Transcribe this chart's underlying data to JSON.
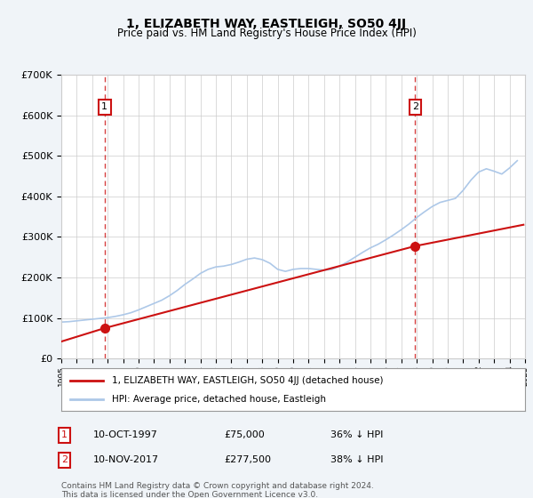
{
  "title": "1, ELIZABETH WAY, EASTLEIGH, SO50 4JJ",
  "subtitle": "Price paid vs. HM Land Registry's House Price Index (HPI)",
  "hpi_label": "HPI: Average price, detached house, Eastleigh",
  "property_label": "1, ELIZABETH WAY, EASTLEIGH, SO50 4JJ (detached house)",
  "sale1_date": "10-OCT-1997",
  "sale1_price": 75000,
  "sale1_hpi": "36% ↓ HPI",
  "sale2_date": "10-NOV-2017",
  "sale2_price": 277500,
  "sale2_hpi": "38% ↓ HPI",
  "ylim": [
    0,
    700000
  ],
  "ylabel_ticks": [
    0,
    100000,
    200000,
    300000,
    400000,
    500000,
    600000,
    700000
  ],
  "background_color": "#f0f4f8",
  "plot_bg_color": "#ffffff",
  "hpi_color": "#adc8e8",
  "property_color": "#cc1111",
  "dashed_color": "#cc1111",
  "annotation_box_color": "#cc1111",
  "footer_text": "Contains HM Land Registry data © Crown copyright and database right 2024.\nThis data is licensed under the Open Government Licence v3.0.",
  "hpi_years": [
    1995,
    1995.5,
    1996,
    1996.5,
    1997,
    1997.5,
    1998,
    1998.5,
    1999,
    1999.5,
    2000,
    2000.5,
    2001,
    2001.5,
    2002,
    2002.5,
    2003,
    2003.5,
    2004,
    2004.5,
    2005,
    2005.5,
    2006,
    2006.5,
    2007,
    2007.5,
    2008,
    2008.5,
    2009,
    2009.5,
    2010,
    2010.5,
    2011,
    2011.5,
    2012,
    2012.5,
    2013,
    2013.5,
    2014,
    2014.5,
    2015,
    2015.5,
    2016,
    2016.5,
    2017,
    2017.5,
    2018,
    2018.5,
    2019,
    2019.5,
    2020,
    2020.5,
    2021,
    2021.5,
    2022,
    2022.5,
    2023,
    2023.5,
    2024,
    2024.5
  ],
  "hpi_values": [
    90000,
    91000,
    93000,
    95000,
    97000,
    99000,
    101000,
    104000,
    108000,
    113000,
    120000,
    128000,
    136000,
    144000,
    155000,
    168000,
    183000,
    196000,
    210000,
    220000,
    226000,
    228000,
    232000,
    238000,
    245000,
    248000,
    244000,
    235000,
    220000,
    215000,
    220000,
    222000,
    222000,
    220000,
    218000,
    220000,
    228000,
    238000,
    250000,
    262000,
    273000,
    282000,
    293000,
    305000,
    318000,
    332000,
    348000,
    362000,
    375000,
    385000,
    390000,
    395000,
    415000,
    440000,
    460000,
    468000,
    462000,
    455000,
    470000,
    488000
  ],
  "property_years": [
    1995,
    1997.8,
    2017.9,
    2024.9
  ],
  "property_values": [
    42000,
    75000,
    277500,
    330000
  ],
  "sale1_year": 1997.8,
  "sale2_year": 2017.9,
  "xmin": 1995,
  "xmax": 2025
}
